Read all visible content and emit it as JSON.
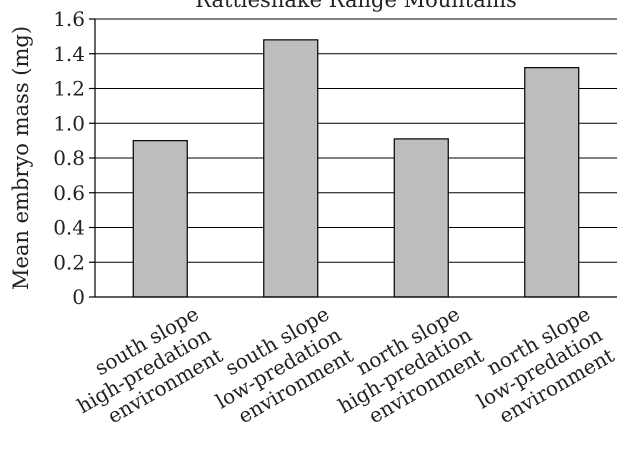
{
  "chart_data": {
    "type": "bar",
    "title": "Rattlesnake Range Mountains",
    "xlabel": "",
    "ylabel": "Mean embryo mass (mg)",
    "ylim": [
      0,
      1.6
    ],
    "yticks": [
      "0",
      "0.2",
      "0.4",
      "0.6",
      "0.8",
      "1.0",
      "1.2",
      "1.4",
      "1.6"
    ],
    "grid": true,
    "categories": [
      "south slope high-predation environment",
      "south slope low-predation environment",
      "north slope high-predation environment",
      "north slope low-predation environment"
    ],
    "category_lines": [
      [
        "south slope",
        "high-predation",
        "environment"
      ],
      [
        "south slope",
        "low-predation",
        "environment"
      ],
      [
        "north slope",
        "high-predation",
        "environment"
      ],
      [
        "north slope",
        "low-predation",
        "environment"
      ]
    ],
    "values": [
      0.9,
      1.48,
      0.91,
      1.32
    ],
    "colors": {
      "bar": "#bdbdbd",
      "stroke": "#000000",
      "grid": "#000000"
    }
  }
}
